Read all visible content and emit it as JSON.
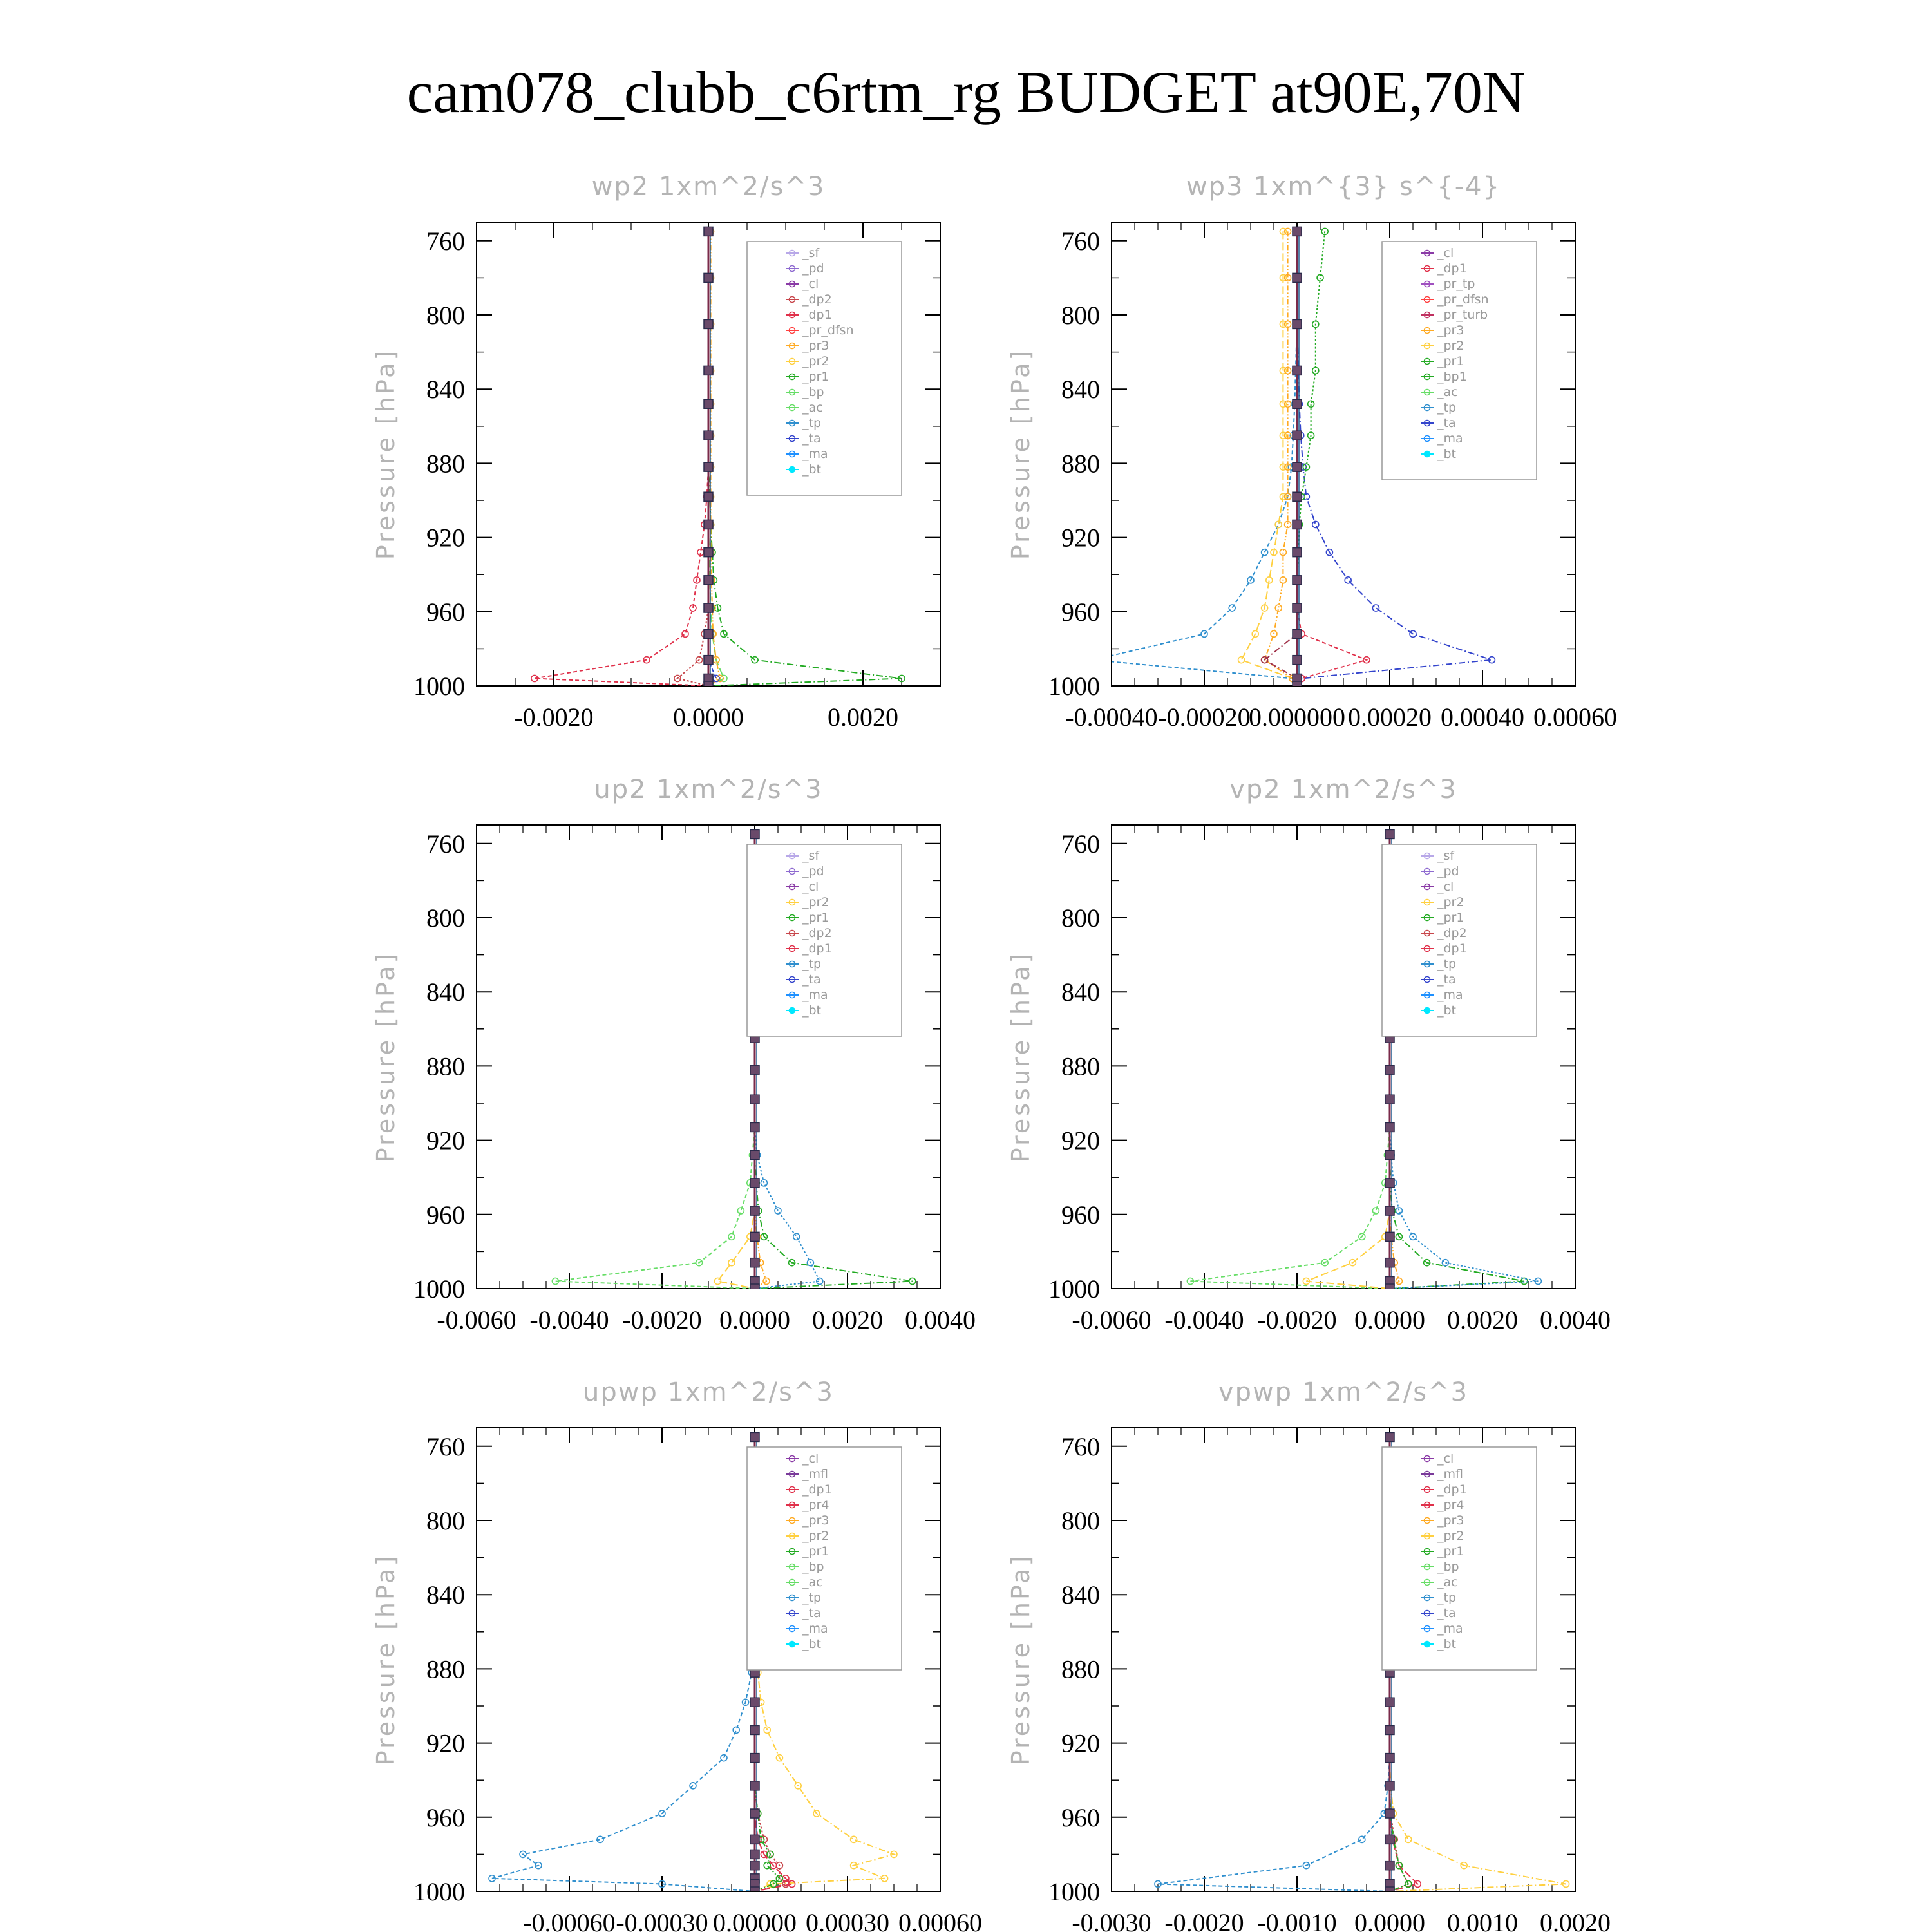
{
  "title": "cam078_clubb_c6rtm_rg  BUDGET at90E,70N",
  "chart_data": [
    {
      "type": "line",
      "title": "wp2   1xm^2/s^3",
      "ylabel": "Pressure [hPa]",
      "yticks": [
        760,
        800,
        840,
        880,
        920,
        960,
        1000
      ],
      "ylim": [
        1000,
        750
      ],
      "xlim": [
        -0.003,
        0.003
      ],
      "xticks": [
        -0.002,
        0.0,
        0.002
      ],
      "xtick_labels": [
        "-0.0020",
        "0.0000",
        "0.0020"
      ],
      "legend": [
        "_sf",
        "_pd",
        "_cl",
        "_dp2",
        "_dp1",
        "_pr_dfsn",
        "_pr3",
        "_pr2",
        "_pr1",
        "_bp",
        "_ac",
        "_tp",
        "_ta",
        "_ma",
        "_bt"
      ],
      "legend_placement": "top-right",
      "y": [
        755,
        780,
        805,
        830,
        848,
        865,
        882,
        898,
        913,
        928,
        943,
        958,
        972,
        986,
        996,
        1000
      ],
      "series": [
        {
          "name": "_dp1",
          "color": "#e0304a",
          "x": [
            0,
            0,
            0,
            0,
            0,
            0,
            0,
            -2e-05,
            -5e-05,
            -0.0001,
            -0.00015,
            -0.0002,
            -0.0003,
            -0.0008,
            -0.00225,
            0
          ]
        },
        {
          "name": "_pr1",
          "color": "#22aa22",
          "x": [
            0,
            0,
            0,
            0,
            0,
            0,
            0,
            2e-05,
            3e-05,
            5e-05,
            7e-05,
            0.00012,
            0.0002,
            0.0006,
            0.0025,
            0
          ]
        },
        {
          "name": "_dp2",
          "color": "#c8464b",
          "x": [
            0,
            0,
            0,
            0,
            0,
            0,
            0,
            0,
            0,
            0,
            0,
            0,
            -5e-05,
            -0.00012,
            -0.0004,
            0
          ]
        },
        {
          "name": "_bp",
          "color": "#66dd66",
          "x": [
            0,
            0,
            0,
            0,
            0,
            0,
            0,
            0,
            0,
            1e-05,
            2e-05,
            3e-05,
            5e-05,
            0.0001,
            0.0002,
            0
          ]
        },
        {
          "name": "_pr3",
          "color": "#ffaa22",
          "x": [
            3e-05,
            3e-05,
            3e-05,
            3e-05,
            3e-05,
            3e-05,
            3e-05,
            3e-05,
            3e-05,
            3e-05,
            4e-05,
            5e-05,
            6e-05,
            0.0001,
            0.00015,
            0
          ]
        },
        {
          "name": "_ta",
          "color": "#3344cc",
          "x": [
            0,
            0,
            0,
            0,
            0,
            0,
            0,
            0,
            0,
            0,
            0,
            0,
            0,
            0,
            0.0001,
            0
          ]
        }
      ]
    },
    {
      "type": "line",
      "title": "wp3   1xm^{3} s^{-4}",
      "ylabel": "Pressure [hPa]",
      "yticks": [
        760,
        800,
        840,
        880,
        920,
        960,
        1000
      ],
      "ylim": [
        1000,
        750
      ],
      "xlim": [
        -0.0004,
        0.0006
      ],
      "xticks": [
        -0.0004,
        -0.0002,
        0.0,
        0.0002,
        0.0004,
        0.0006
      ],
      "xtick_labels": [
        "-0.00040",
        "-0.00020",
        "0.000000",
        "0.00020",
        "0.00040",
        "0.00060"
      ],
      "legend": [
        "_cl",
        "_dp1",
        "_pr_tp",
        "_pr_dfsn",
        "_pr_turb",
        "_pr3",
        "_pr2",
        "_pr1",
        "_bp1",
        "_ac",
        "_tp",
        "_ta",
        "_ma",
        "_bt"
      ],
      "legend_placement": "top-right",
      "y": [
        755,
        780,
        805,
        830,
        848,
        865,
        882,
        898,
        913,
        928,
        943,
        958,
        972,
        986,
        996,
        1000
      ],
      "series": [
        {
          "name": "_tp",
          "color": "#2f8fce",
          "x": [
            0,
            0,
            0,
            -3e-06,
            -5e-06,
            -8e-06,
            -1.2e-05,
            -2e-05,
            -4e-05,
            -7e-05,
            -0.0001,
            -0.00014,
            -0.0002,
            -0.00044,
            -1e-05,
            0
          ]
        },
        {
          "name": "_ta",
          "color": "#3344cc",
          "x": [
            0,
            0,
            0,
            3e-06,
            5e-06,
            8e-06,
            1.3e-05,
            2e-05,
            4e-05,
            7e-05,
            0.00011,
            0.00017,
            0.00025,
            0.00042,
            1e-05,
            0
          ]
        },
        {
          "name": "_pr1",
          "color": "#22aa22",
          "x": [
            6e-05,
            5e-05,
            4e-05,
            4e-05,
            3e-05,
            3e-05,
            2e-05,
            1e-05,
            5e-06,
            3e-06,
            0,
            0,
            0,
            0,
            0,
            0
          ]
        },
        {
          "name": "_pr2",
          "color": "#ffd040",
          "x": [
            -3e-05,
            -3e-05,
            -3e-05,
            -3e-05,
            -3e-05,
            -3e-05,
            -3e-05,
            -3e-05,
            -4e-05,
            -5e-05,
            -6e-05,
            -7e-05,
            -9e-05,
            -0.00012,
            -1e-05,
            0
          ]
        },
        {
          "name": "_pr3",
          "color": "#ffaa22",
          "x": [
            -2e-05,
            -2e-05,
            -2e-05,
            -2e-05,
            -2e-05,
            -2e-05,
            -2e-05,
            -2e-05,
            -2e-05,
            -3e-05,
            -3e-05,
            -4e-05,
            -5e-05,
            -7e-05,
            -1e-05,
            0
          ]
        },
        {
          "name": "_pr_turb",
          "color": "#e0304a",
          "x": [
            0,
            0,
            0,
            0,
            0,
            0,
            0,
            0,
            0,
            0,
            0,
            0,
            1e-05,
            0.00015,
            1e-05,
            0
          ]
        },
        {
          "name": "_pr_dfsn",
          "color": "#a03048",
          "x": [
            0,
            0,
            0,
            0,
            0,
            0,
            0,
            0,
            0,
            0,
            0,
            0,
            0,
            -7e-05,
            0,
            0
          ]
        }
      ]
    },
    {
      "type": "line",
      "title": "up2   1xm^2/s^3",
      "ylabel": "Pressure [hPa]",
      "yticks": [
        760,
        800,
        840,
        880,
        920,
        960,
        1000
      ],
      "ylim": [
        1000,
        750
      ],
      "xlim": [
        -0.006,
        0.004
      ],
      "xticks": [
        -0.006,
        -0.004,
        -0.002,
        0.0,
        0.002,
        0.004
      ],
      "xtick_labels": [
        "-0.0060",
        "-0.0040",
        "-0.0020",
        "0.0000",
        "0.0020",
        "0.0040"
      ],
      "legend": [
        "_sf",
        "_pd",
        "_cl",
        "_pr2",
        "_pr1",
        "_dp2",
        "_dp1",
        "_tp",
        "_ta",
        "_ma",
        "_bt"
      ],
      "legend_placement": "top-right",
      "y": [
        755,
        780,
        805,
        830,
        848,
        865,
        882,
        898,
        913,
        928,
        943,
        958,
        972,
        986,
        996,
        1000
      ],
      "series": [
        {
          "name": "_dp1",
          "color": "#66dd66",
          "x": [
            0,
            0,
            0,
            0,
            0,
            0,
            0,
            0,
            0,
            -5e-05,
            -0.0001,
            -0.0003,
            -0.0005,
            -0.0012,
            -0.0043,
            0
          ]
        },
        {
          "name": "_dp2",
          "color": "#22aa22",
          "x": [
            0,
            0,
            0,
            0,
            0,
            0,
            0,
            0,
            0,
            0,
            3e-05,
            8e-05,
            0.0002,
            0.0008,
            0.0034,
            0
          ]
        },
        {
          "name": "_tp",
          "color": "#2f8fce",
          "x": [
            0,
            0,
            0,
            0,
            0,
            0,
            0,
            0,
            0,
            5e-05,
            0.0002,
            0.0005,
            0.0009,
            0.0012,
            0.0014,
            0
          ]
        },
        {
          "name": "_pr1",
          "color": "#ffd040",
          "x": [
            0,
            0,
            0,
            0,
            0,
            0,
            0,
            0,
            0,
            0,
            0,
            0,
            -0.0001,
            -0.0005,
            -0.0008,
            0
          ]
        },
        {
          "name": "_pr2",
          "color": "#ffaa22",
          "x": [
            0,
            0,
            0,
            0,
            0,
            0,
            0,
            0,
            0,
            0,
            0,
            0,
            5e-05,
            0.00012,
            0.00025,
            0
          ]
        }
      ]
    },
    {
      "type": "line",
      "title": "vp2   1xm^2/s^3",
      "ylabel": "Pressure [hPa]",
      "yticks": [
        760,
        800,
        840,
        880,
        920,
        960,
        1000
      ],
      "ylim": [
        1000,
        750
      ],
      "xlim": [
        -0.006,
        0.004
      ],
      "xticks": [
        -0.006,
        -0.004,
        -0.002,
        0.0,
        0.002,
        0.004
      ],
      "xtick_labels": [
        "-0.0060",
        "-0.0040",
        "-0.0020",
        "0.0000",
        "0.0020",
        "0.0040"
      ],
      "legend": [
        "_sf",
        "_pd",
        "_cl",
        "_pr2",
        "_pr1",
        "_dp2",
        "_dp1",
        "_tp",
        "_ta",
        "_ma",
        "_bt"
      ],
      "legend_placement": "top-right",
      "y": [
        755,
        780,
        805,
        830,
        848,
        865,
        882,
        898,
        913,
        928,
        943,
        958,
        972,
        986,
        996,
        1000
      ],
      "series": [
        {
          "name": "_dp1",
          "color": "#66dd66",
          "x": [
            0,
            0,
            0,
            0,
            0,
            0,
            0,
            0,
            0,
            -5e-05,
            -0.0001,
            -0.0003,
            -0.0006,
            -0.0014,
            -0.0043,
            0
          ]
        },
        {
          "name": "_dp2",
          "color": "#22aa22",
          "x": [
            0,
            0,
            0,
            0,
            0,
            0,
            0,
            0,
            0,
            0,
            2e-05,
            5e-05,
            0.0002,
            0.0008,
            0.0029,
            0
          ]
        },
        {
          "name": "_tp",
          "color": "#2f8fce",
          "x": [
            0,
            0,
            0,
            0,
            0,
            0,
            0,
            0,
            0,
            3e-05,
            8e-05,
            0.0002,
            0.0005,
            0.0012,
            0.0032,
            0
          ]
        },
        {
          "name": "_pr1",
          "color": "#ffd040",
          "x": [
            0,
            0,
            0,
            0,
            0,
            0,
            0,
            0,
            0,
            0,
            0,
            0,
            -0.0001,
            -0.0008,
            -0.0018,
            0
          ]
        },
        {
          "name": "_pr2",
          "color": "#ffaa22",
          "x": [
            0,
            0,
            0,
            0,
            0,
            0,
            0,
            0,
            0,
            0,
            0,
            0,
            3e-05,
            0.0001,
            0.0002,
            0
          ]
        }
      ]
    },
    {
      "type": "line",
      "title": "upwp   1xm^2/s^3",
      "ylabel": "Pressure [hPa]",
      "yticks": [
        760,
        800,
        840,
        880,
        920,
        960,
        1000
      ],
      "ylim": [
        1000,
        750
      ],
      "xlim": [
        -0.0009,
        0.0006
      ],
      "xticks": [
        -0.0006,
        -0.0003,
        0.0,
        0.0003,
        0.0006
      ],
      "xtick_labels": [
        "-0.00060",
        "-0.00030",
        "0.00000",
        "0.00030",
        "0.00060"
      ],
      "legend": [
        "_cl",
        "_mfl",
        "_dp1",
        "_pr4",
        "_pr3",
        "_pr2",
        "_pr1",
        "_bp",
        "_ac",
        "_tp",
        "_ta",
        "_ma",
        "_bt"
      ],
      "legend_placement": "top-right",
      "y": [
        755,
        780,
        805,
        830,
        848,
        865,
        882,
        898,
        913,
        928,
        943,
        958,
        972,
        980,
        986,
        993,
        996,
        1000
      ],
      "series": [
        {
          "name": "_tp",
          "color": "#2f8fce",
          "x": [
            0,
            0,
            0,
            -2e-06,
            -4e-06,
            -7e-06,
            -1e-05,
            -3e-05,
            -6e-05,
            -0.0001,
            -0.0002,
            -0.0003,
            -0.0005,
            -0.00075,
            -0.0007,
            -0.00085,
            -0.0003,
            0
          ]
        },
        {
          "name": "_pr1",
          "color": "#ffd040",
          "x": [
            0,
            0,
            0,
            2e-06,
            4e-06,
            7e-06,
            1e-05,
            2e-05,
            4e-05,
            8e-05,
            0.00014,
            0.0002,
            0.00032,
            0.00045,
            0.00032,
            0.00042,
            5e-05,
            0
          ]
        },
        {
          "name": "_dp1",
          "color": "#c8464b",
          "x": [
            0,
            0,
            0,
            0,
            0,
            0,
            0,
            0,
            0,
            0,
            0,
            1e-05,
            3e-05,
            5e-05,
            8e-05,
            8e-05,
            0.0001,
            0
          ]
        },
        {
          "name": "_pr4",
          "color": "#e0304a",
          "x": [
            0,
            0,
            0,
            0,
            0,
            0,
            0,
            0,
            0,
            0,
            0,
            0,
            1e-05,
            3e-05,
            6e-05,
            0.0001,
            0.00012,
            0
          ]
        },
        {
          "name": "_bp",
          "color": "#22aa22",
          "x": [
            0,
            0,
            0,
            0,
            0,
            0,
            0,
            0,
            0,
            0,
            0,
            1e-05,
            2e-05,
            5e-05,
            4e-05,
            8e-05,
            6e-05,
            0
          ]
        }
      ]
    },
    {
      "type": "line",
      "title": "vpwp   1xm^2/s^3",
      "ylabel": "Pressure [hPa]",
      "yticks": [
        760,
        800,
        840,
        880,
        920,
        960,
        1000
      ],
      "ylim": [
        1000,
        750
      ],
      "xlim": [
        -0.003,
        0.002
      ],
      "xticks": [
        -0.003,
        -0.002,
        -0.001,
        0.0,
        0.001,
        0.002
      ],
      "xtick_labels": [
        "-0.0030",
        "-0.0020",
        "-0.0010",
        "0.0000",
        "0.0010",
        "0.0020"
      ],
      "legend": [
        "_cl",
        "_mfl",
        "_dp1",
        "_pr4",
        "_pr3",
        "_pr2",
        "_pr1",
        "_bp",
        "_ac",
        "_tp",
        "_ta",
        "_ma",
        "_bt"
      ],
      "legend_placement": "top-right",
      "y": [
        755,
        780,
        805,
        830,
        848,
        865,
        882,
        898,
        913,
        928,
        943,
        958,
        972,
        986,
        996,
        1000
      ],
      "series": [
        {
          "name": "_tp",
          "color": "#2f8fce",
          "x": [
            0,
            0,
            0,
            0,
            0,
            0,
            0,
            0,
            0,
            0,
            -2e-05,
            -6e-05,
            -0.0003,
            -0.0009,
            -0.0025,
            0
          ]
        },
        {
          "name": "_pr1",
          "color": "#ffd040",
          "x": [
            0,
            0,
            0,
            0,
            0,
            0,
            0,
            0,
            0,
            0,
            1e-05,
            4e-05,
            0.0002,
            0.0008,
            0.0019,
            0
          ]
        },
        {
          "name": "_dp1",
          "color": "#c8464b",
          "x": [
            0,
            0,
            0,
            0,
            0,
            0,
            0,
            0,
            0,
            0,
            0,
            1e-05,
            5e-05,
            0.0001,
            0.0002,
            0
          ]
        },
        {
          "name": "_pr4",
          "color": "#e0304a",
          "x": [
            0,
            0,
            0,
            0,
            0,
            0,
            0,
            0,
            0,
            0,
            0,
            0,
            3e-05,
            0.0001,
            0.0003,
            0
          ]
        },
        {
          "name": "_bp",
          "color": "#22aa22",
          "x": [
            0,
            0,
            0,
            0,
            0,
            0,
            0,
            0,
            0,
            0,
            0,
            1e-05,
            4e-05,
            0.0001,
            0.0002,
            0
          ]
        }
      ]
    }
  ],
  "legend_colors": {
    "_sf": "#b8a8e8",
    "_pd": "#8e6ad0",
    "_cl": "#8a3aa6",
    "_dp2": "#c8464b",
    "_dp1": "#e0304a",
    "_pr_dfsn": "#ff4040",
    "_pr3": "#ffaa22",
    "_pr2": "#ffd040",
    "_pr1": "#22aa22",
    "_bp": "#66dd66",
    "_ac": "#66dd66",
    "_tp": "#2f8fce",
    "_ta": "#3344cc",
    "_ma": "#1e90ff",
    "_bt": "#00e8ff",
    "_pr_tp": "#a050c0",
    "_pr_turb": "#c03060",
    "_bp1": "#22aa22",
    "_mfl": "#7a3a9a",
    "_pr4": "#e0304a"
  }
}
